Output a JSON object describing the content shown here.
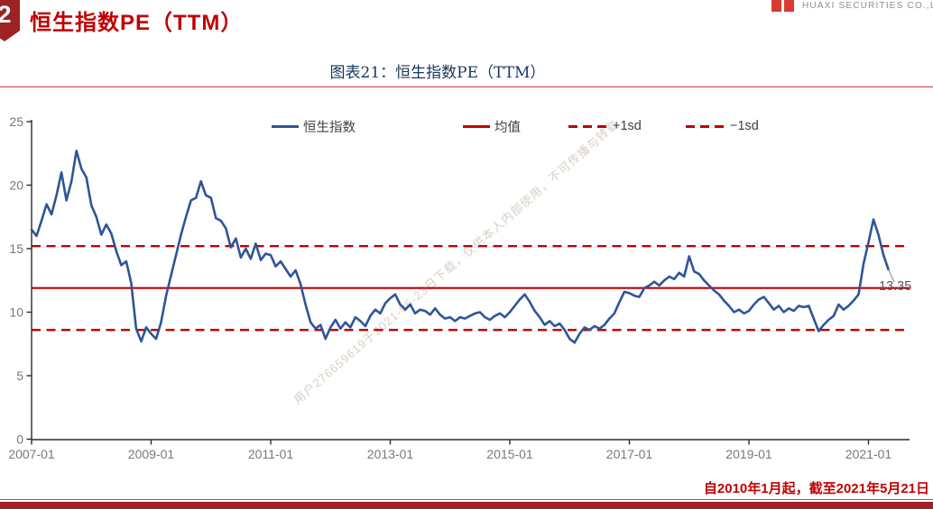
{
  "page": {
    "badge": "2",
    "title": "恒生指数PE（TTM）",
    "logo_text": "HUAXI SECURITIES CO.,LTD",
    "footnote": "自2010年1月起，截至2021年5月21日",
    "watermark": "用户276659619于2021-06-23日下载，仅供本人内部使用，不可传播与转载"
  },
  "colors": {
    "accent_red": "#c00000",
    "maroon_bar": "#9e2123",
    "rule_red": "#cf4438",
    "series_blue": "#2e5597",
    "axis_dark": "#2b2b2b",
    "tick_gray": "#787878",
    "annotation_gray": "#595959",
    "title_navy": "#17375e"
  },
  "chart_data": {
    "type": "line",
    "title": "图表21：恒生指数PE（TTM）",
    "ylim": [
      0,
      25
    ],
    "y_ticks": [
      0,
      5,
      10,
      15,
      20,
      25
    ],
    "x_ticks": [
      "2007-01",
      "2009-01",
      "2011-01",
      "2013-01",
      "2015-01",
      "2017-01",
      "2019-01",
      "2021-01"
    ],
    "x_start": "2007-01",
    "x_step_months": 1,
    "grid": false,
    "legend_position": "top-inside",
    "legend_items": [
      {
        "label": "恒生指数",
        "line": "solid",
        "color": "#2e5597"
      },
      {
        "label": "均值",
        "line": "solid",
        "color": "#c00000"
      },
      {
        "label": "+1sd",
        "line": "dashed",
        "color": "#c00000"
      },
      {
        "label": "−1sd",
        "line": "dashed",
        "color": "#c00000"
      }
    ],
    "mean": 11.9,
    "plus_1sd": 15.2,
    "minus_1sd": 8.6,
    "last_label": "13.35",
    "series": [
      {
        "name": "恒生指数",
        "values": [
          16.5,
          16.0,
          17.2,
          18.5,
          17.7,
          19.2,
          21.0,
          18.8,
          20.3,
          22.7,
          21.3,
          20.6,
          18.4,
          17.5,
          16.1,
          16.9,
          16.2,
          14.8,
          13.7,
          14.0,
          12.3,
          8.7,
          7.7,
          8.8,
          8.3,
          7.9,
          9.2,
          11.3,
          12.9,
          14.5,
          16.1,
          17.5,
          18.8,
          19.0,
          20.3,
          19.2,
          19.0,
          17.4,
          17.2,
          16.6,
          15.1,
          15.8,
          14.3,
          15.0,
          14.2,
          15.4,
          14.1,
          14.6,
          14.5,
          13.6,
          14.0,
          13.4,
          12.8,
          13.3,
          12.2,
          10.6,
          9.2,
          8.7,
          9.0,
          7.9,
          8.8,
          9.4,
          8.7,
          9.2,
          8.8,
          9.6,
          9.3,
          8.9,
          9.7,
          10.2,
          9.9,
          10.7,
          11.1,
          11.4,
          10.6,
          10.2,
          10.6,
          9.9,
          10.2,
          10.1,
          9.8,
          10.3,
          9.8,
          9.5,
          9.6,
          9.3,
          9.6,
          9.5,
          9.7,
          9.9,
          10.0,
          9.6,
          9.4,
          9.7,
          9.9,
          9.6,
          10.0,
          10.5,
          11.0,
          11.4,
          10.8,
          10.1,
          9.6,
          9.0,
          9.3,
          8.9,
          9.1,
          8.6,
          7.9,
          7.6,
          8.3,
          8.8,
          8.6,
          8.9,
          8.7,
          9.0,
          9.5,
          9.9,
          10.8,
          11.6,
          11.5,
          11.3,
          11.2,
          11.9,
          12.1,
          12.4,
          12.1,
          12.5,
          12.8,
          12.6,
          13.1,
          12.8,
          14.4,
          13.2,
          13.0,
          12.5,
          12.1,
          11.7,
          11.4,
          10.9,
          10.5,
          10.0,
          10.2,
          9.9,
          10.1,
          10.6,
          11.0,
          11.2,
          10.7,
          10.2,
          10.5,
          10.0,
          10.3,
          10.1,
          10.5,
          10.4,
          10.5,
          9.5,
          8.5,
          9.0,
          9.4,
          9.7,
          10.6,
          10.2,
          10.5,
          10.9,
          11.4,
          13.8,
          15.5,
          17.3,
          16.1,
          14.5,
          13.35
        ]
      }
    ]
  }
}
